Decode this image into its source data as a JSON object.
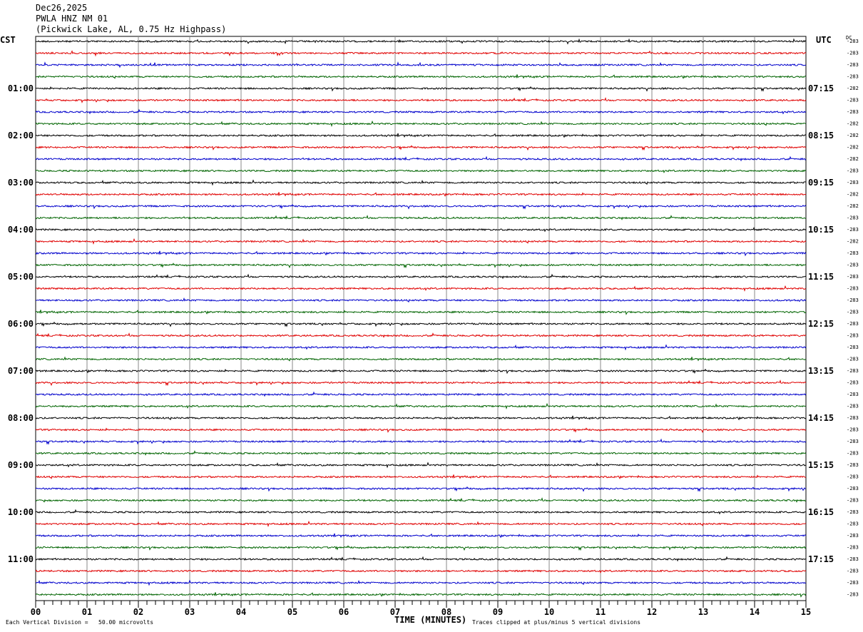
{
  "header": {
    "date": "Dec26,2025",
    "station": "PWLA HNZ NM 01",
    "location": "(Pickwick Lake, AL, 0.75 Hz Highpass)"
  },
  "left_axis_label": "CST",
  "right_axis_label": "UTC",
  "dc_label": "DC",
  "footer": {
    "scale": "Each Vertical Division =   50.00 microvolts",
    "clip": "Traces clipped at plus/minus 5 vertical divisions"
  },
  "chart_data": {
    "type": "line",
    "title": "",
    "xlabel": "TIME (MINUTES)",
    "xlim": [
      0,
      15
    ],
    "x_ticks": [
      "00",
      "01",
      "02",
      "03",
      "04",
      "05",
      "06",
      "07",
      "08",
      "09",
      "10",
      "11",
      "12",
      "13",
      "14",
      "15"
    ],
    "left_hour_labels": [
      "01:00",
      "02:00",
      "03:00",
      "04:00",
      "05:00",
      "06:00",
      "07:00",
      "08:00",
      "09:00",
      "10:00",
      "11:00"
    ],
    "right_hour_labels": [
      "07:15",
      "08:15",
      "09:15",
      "10:15",
      "11:15",
      "12:15",
      "13:15",
      "14:15",
      "15:15",
      "16:15",
      "17:15"
    ],
    "trace_colors": [
      "#000000",
      "#e00000",
      "#0000cc",
      "#006400"
    ],
    "dc_offsets": [
      "-283",
      "-283",
      "-283",
      "-283",
      "-282",
      "-283",
      "-283",
      "-282",
      "-282",
      "-282",
      "-282",
      "-283",
      "-283",
      "-282",
      "-282",
      "-283",
      "-283",
      "-282",
      "-283",
      "-283",
      "-283",
      "-283",
      "-283",
      "-283",
      "-283",
      "-283",
      "-283",
      "-283",
      "-283",
      "-283",
      "-283",
      "-283",
      "-283",
      "-283",
      "-283",
      "-283",
      "-283",
      "-283",
      "-283",
      "-283",
      "-283",
      "-283",
      "-283",
      "-283",
      "-283",
      "-283",
      "-283",
      "-283"
    ]
  }
}
